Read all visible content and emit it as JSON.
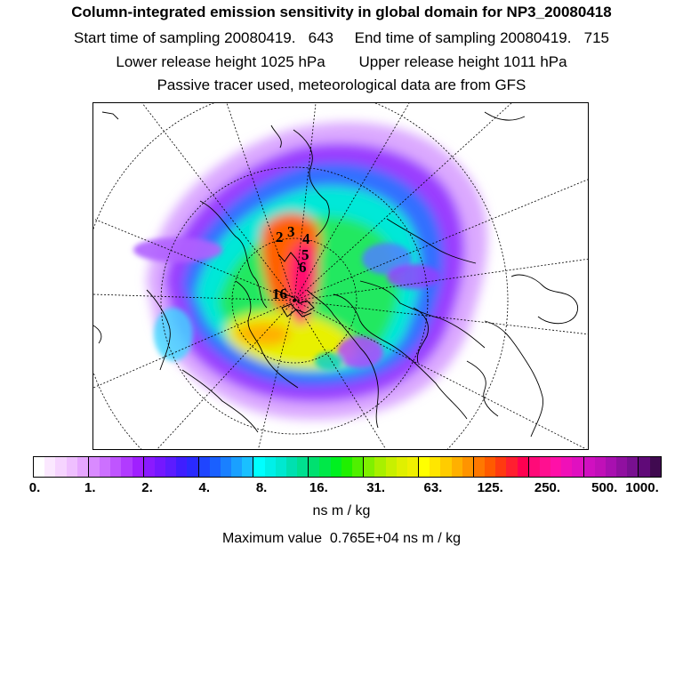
{
  "title": "Column-integrated emission sensitivity in global domain for NP3_20080418",
  "sampling_line": "Start time of sampling 20080419.   643     End time of sampling 20080419.   715",
  "release_line": "Lower release height 1025 hPa        Upper release height 1011 hPa",
  "tracer_line": "Passive tracer used, meteorological data are from GFS",
  "release_labels": [
    "2",
    "3",
    "4",
    "5",
    "6",
    "16"
  ],
  "colorbar": {
    "tick_labels": [
      "0.",
      "1.",
      "2.",
      "4.",
      "8.",
      "16.",
      "31.",
      "63.",
      "125.",
      "250.",
      "500.",
      "1000."
    ],
    "units": "ns m / kg",
    "colors": [
      "#ffffff",
      "#fbe8ff",
      "#f6d4ff",
      "#efbfff",
      "#e6a6ff",
      "#d98aff",
      "#cc70ff",
      "#bf55ff",
      "#b13bff",
      "#a020ff",
      "#8a1aff",
      "#7418ff",
      "#5c1cff",
      "#3f1eff",
      "#2a2aff",
      "#1f45ff",
      "#1a60ff",
      "#1a80ff",
      "#1aa0ff",
      "#1ac0ff",
      "#00ffff",
      "#00f0e8",
      "#00e8d0",
      "#00e0b0",
      "#00e090",
      "#00e070",
      "#00e848",
      "#00f020",
      "#20f000",
      "#50f000",
      "#80f000",
      "#a8f000",
      "#c8f000",
      "#e0f000",
      "#f0f000",
      "#ffff00",
      "#ffe600",
      "#ffcc00",
      "#ffb000",
      "#ff9400",
      "#ff7800",
      "#ff5a00",
      "#ff3a10",
      "#ff1f30",
      "#ff0050",
      "#ff0a78",
      "#ff1090",
      "#ff10a8",
      "#f010b8",
      "#e010c0",
      "#d010c0",
      "#c010b8",
      "#a810b0",
      "#9010a0",
      "#781090",
      "#600a78",
      "#400a50"
    ]
  },
  "max_value_line": "Maximum value  0.765E+04 ns m / kg"
}
